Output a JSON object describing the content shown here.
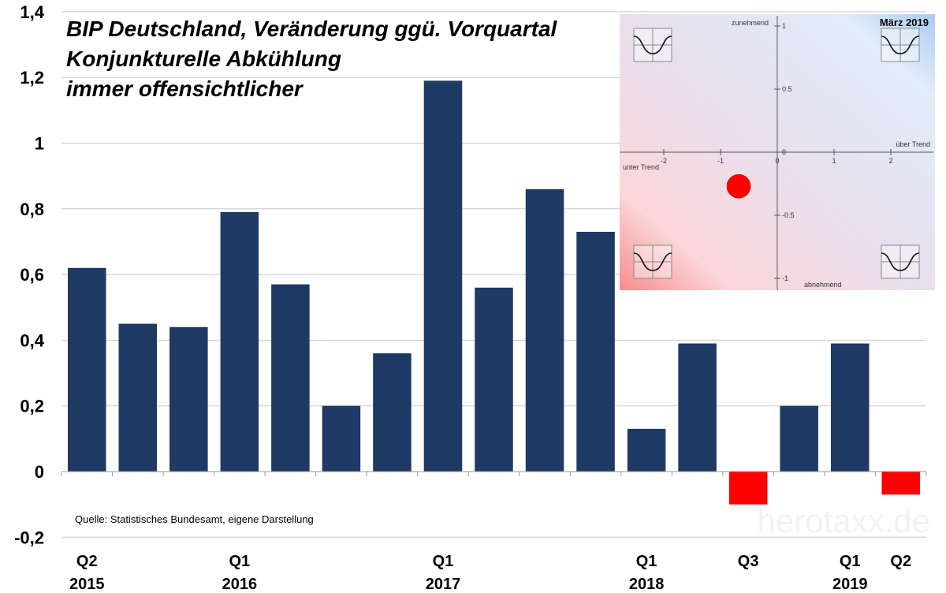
{
  "chart_data": {
    "type": "bar",
    "title_lines": [
      "BIP Deutschland, Veränderung ggü. Vorquartal",
      "Konjunkturelle Abkühlung",
      "immer offensichtlicher"
    ],
    "categories": [
      "Q2 2015",
      "Q3 2015",
      "Q4 2015",
      "Q1 2016",
      "Q2 2016",
      "Q3 2016",
      "Q4 2016",
      "Q1 2017",
      "Q2 2017",
      "Q3 2017",
      "Q4 2017",
      "Q1 2018",
      "Q2 2018",
      "Q3 2018",
      "Q4 2018",
      "Q1 2019",
      "Q2 2019"
    ],
    "values": [
      0.62,
      0.45,
      0.44,
      0.79,
      0.57,
      0.2,
      0.36,
      1.19,
      0.56,
      0.86,
      0.73,
      0.13,
      0.39,
      -0.1,
      0.2,
      0.39,
      -0.07
    ],
    "x_labels": [
      {
        "index": 0,
        "q": "Q2",
        "year": "2015"
      },
      {
        "index": 3,
        "q": "Q1",
        "year": "2016"
      },
      {
        "index": 7,
        "q": "Q1",
        "year": "2017"
      },
      {
        "index": 11,
        "q": "Q1",
        "year": "2018"
      },
      {
        "index": 13,
        "q": "Q3",
        "year": ""
      },
      {
        "index": 15,
        "q": "Q1",
        "year": "2019"
      },
      {
        "index": 16,
        "q": "Q2",
        "year": ""
      }
    ],
    "ylim": [
      -0.2,
      1.4
    ],
    "yticks": [
      -0.2,
      0,
      0.2,
      0.4,
      0.6,
      0.8,
      1,
      1.2,
      1.4
    ],
    "ytick_labels": [
      "-0,2",
      "0",
      "0,2",
      "0,4",
      "0,6",
      "0,8",
      "1",
      "1,2",
      "1,4"
    ],
    "grid": true,
    "colors": {
      "positive": "#1e3a64",
      "negative": "#ff0000"
    },
    "source": "Quelle: Statistisches Bundesamt, eigene Darstellung",
    "watermark": "herotaxx.de",
    "inset": {
      "type": "scatter",
      "title": "März 2019",
      "xlim": [
        -2.8,
        2.8
      ],
      "ylim": [
        -1.05,
        1.05
      ],
      "xticks": [
        -2,
        -1,
        0,
        1,
        2
      ],
      "yticks": [
        1,
        0.5,
        0,
        -0.5,
        -1
      ],
      "ytick_labels": [
        "1",
        "0.5",
        "0",
        "-0.5",
        "-1"
      ],
      "labels": {
        "top": "zunehmend",
        "bottom": "abnehmend",
        "left": "unter Trend",
        "right": "über Trend"
      },
      "point": {
        "x": -0.68,
        "y": -0.27,
        "color": "#ff0000"
      }
    }
  }
}
